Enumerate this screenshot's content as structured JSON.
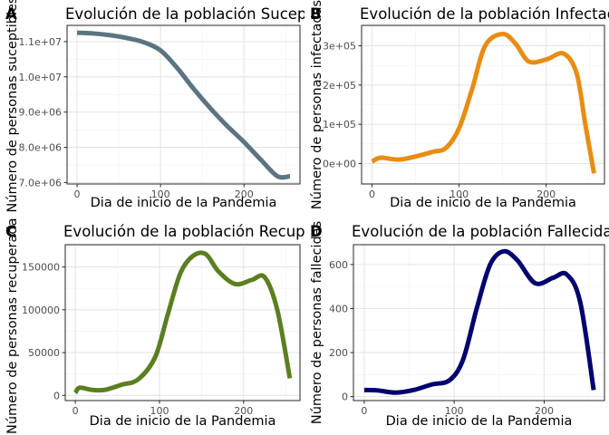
{
  "panels": [
    {
      "label": "A",
      "title": "Evolución de la población Suceptible",
      "xlabel": "Dia de inicio de la Pandemia",
      "ylabel": "Número de personas suceptibles",
      "color": "#5A7581"
    },
    {
      "label": "B",
      "title": "Evolución de la población Infectada",
      "xlabel": "Dia de inicio de la Pandemia",
      "ylabel": "Número de personas infectadas",
      "color": "#E88C12"
    },
    {
      "label": "C",
      "title": "Evolución de la población Recuperada",
      "xlabel": "Dia de inicio de la Pandemia",
      "ylabel": "Número de personas recuperadas",
      "color": "#5B7F20"
    },
    {
      "label": "D",
      "title": "Evolución de la población Fallecida (",
      "xlabel": "Dia de inicio de la Pandemia",
      "ylabel": "Número de personas fallecidas",
      "color": "#000070"
    }
  ],
  "chart_data": [
    {
      "type": "line",
      "title": "Evolución de la población Suceptible",
      "xlabel": "Dia de inicio de la Pandemia",
      "ylabel": "Número de personas suceptibles",
      "xlim": [
        -12,
        267
      ],
      "ylim": [
        6960000,
        11460000
      ],
      "xticks": [
        0,
        100,
        200
      ],
      "xtick_labels": [
        "0",
        "100",
        "200"
      ],
      "yticks": [
        7000000,
        8000000,
        9000000,
        10000000,
        11000000
      ],
      "ytick_labels": [
        "7.0e+06",
        "8.0e+06",
        "9.0e+06",
        "1.0e+07",
        "1.1e+07"
      ],
      "grid": true,
      "series": [
        {
          "color": "#5A7581",
          "x": [
            0,
            20,
            40,
            60,
            80,
            100,
            120,
            140,
            160,
            180,
            200,
            220,
            240,
            255
          ],
          "y": [
            11250000,
            11230000,
            11180000,
            11100000,
            10980000,
            10750000,
            10250000,
            9650000,
            9100000,
            8600000,
            8150000,
            7650000,
            7180000,
            7180000
          ]
        }
      ]
    },
    {
      "type": "line",
      "title": "Evolución de la población Infectada",
      "xlabel": "Dia de inicio de la Pandemia",
      "ylabel": "Número de personas infectadas",
      "xlim": [
        -12,
        267
      ],
      "ylim": [
        -52000,
        352000
      ],
      "xticks": [
        0,
        100,
        200
      ],
      "xtick_labels": [
        "0",
        "100",
        "200"
      ],
      "yticks": [
        0,
        100000,
        200000,
        300000
      ],
      "ytick_labels": [
        "0e+00",
        "1e+05",
        "2e+05",
        "3e+05"
      ],
      "grid": true,
      "series": [
        {
          "color": "#E88C12",
          "x": [
            0,
            10,
            30,
            50,
            70,
            85,
            100,
            115,
            130,
            150,
            165,
            180,
            200,
            220,
            235,
            245,
            255
          ],
          "y": [
            5000,
            15000,
            10000,
            18000,
            30000,
            40000,
            90000,
            190000,
            300000,
            330000,
            305000,
            260000,
            265000,
            280000,
            230000,
            100000,
            -25000
          ]
        }
      ]
    },
    {
      "type": "line",
      "title": "Evolución de la población Recuperada",
      "xlabel": "Dia de inicio de la Pandemia",
      "ylabel": "Número de personas recuperadas",
      "xlim": [
        -12,
        267
      ],
      "ylim": [
        -6000,
        176000
      ],
      "xticks": [
        0,
        100,
        200
      ],
      "xtick_labels": [
        "0",
        "100",
        "200"
      ],
      "yticks": [
        0,
        50000,
        100000,
        150000
      ],
      "ytick_labels": [
        "0",
        "50000",
        "100000",
        "150000"
      ],
      "grid": true,
      "series": [
        {
          "color": "#5B7F20",
          "x": [
            0,
            5,
            20,
            35,
            55,
            75,
            95,
            110,
            125,
            140,
            155,
            170,
            190,
            210,
            225,
            240,
            255
          ],
          "y": [
            3000,
            9000,
            6500,
            6500,
            12500,
            19000,
            45000,
            95000,
            143000,
            163000,
            165000,
            145000,
            130000,
            135000,
            138000,
            100000,
            20000
          ]
        }
      ]
    },
    {
      "type": "line",
      "title": "Evolución de la población Fallecida (",
      "xlabel": "Dia de inicio de la Pandemia",
      "ylabel": "Número de personas fallecidas",
      "xlim": [
        -12,
        267
      ],
      "ylim": [
        -18,
        690
      ],
      "xticks": [
        0,
        100,
        200
      ],
      "xtick_labels": [
        "0",
        "100",
        "200"
      ],
      "yticks": [
        0,
        200,
        400,
        600
      ],
      "ytick_labels": [
        "0",
        "200",
        "400",
        "600"
      ],
      "grid": true,
      "series": [
        {
          "color": "#000070",
          "x": [
            0,
            15,
            35,
            55,
            75,
            95,
            110,
            125,
            140,
            155,
            170,
            190,
            210,
            225,
            240,
            255
          ],
          "y": [
            30,
            28,
            18,
            30,
            55,
            75,
            170,
            400,
            600,
            660,
            620,
            515,
            540,
            555,
            430,
            30
          ]
        }
      ]
    }
  ]
}
